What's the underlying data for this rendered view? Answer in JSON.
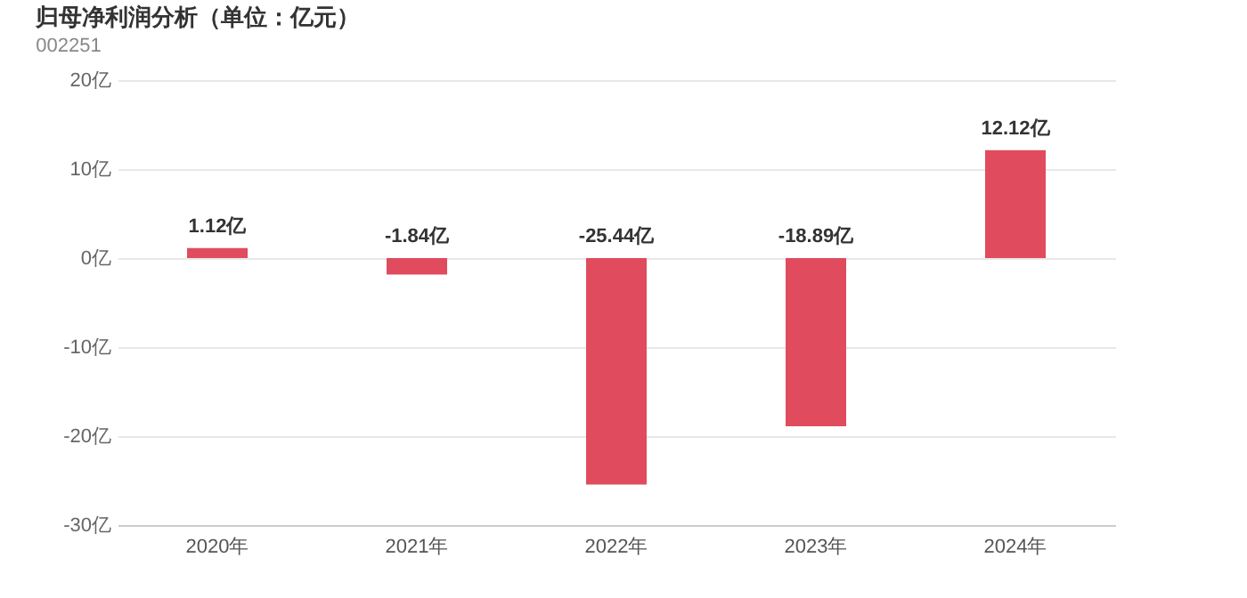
{
  "chart_data": {
    "type": "bar",
    "title": "归母净利润分析（单位：亿元）",
    "subtitle": "002251",
    "categories": [
      "2020年",
      "2021年",
      "2022年",
      "2023年",
      "2024年"
    ],
    "values": [
      1.12,
      -1.84,
      -25.44,
      -18.89,
      12.12
    ],
    "value_labels": [
      "1.12亿",
      "-1.84亿",
      "-25.44亿",
      "-18.89亿",
      "12.12亿"
    ],
    "color": "#e04b5e",
    "ylim": [
      -30,
      20
    ],
    "yticks": [
      {
        "value": 20,
        "label": "20亿"
      },
      {
        "value": 10,
        "label": "10亿"
      },
      {
        "value": 0,
        "label": "0亿"
      },
      {
        "value": -10,
        "label": "-10亿"
      },
      {
        "value": -20,
        "label": "-20亿"
      },
      {
        "value": -30,
        "label": "-30亿"
      }
    ],
    "grid": "y"
  }
}
